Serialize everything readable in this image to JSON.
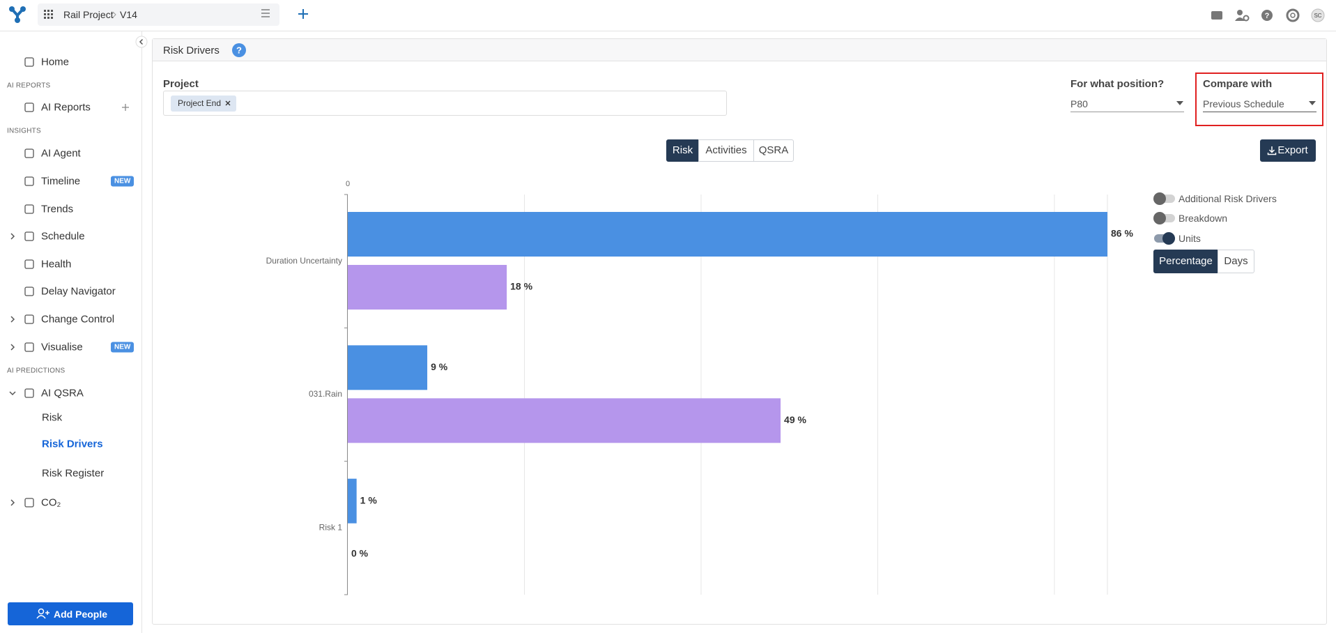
{
  "header": {
    "project": "Rail Project",
    "version": "V14",
    "avatar": "SC"
  },
  "sidebar": [
    {
      "label": "Home"
    },
    {
      "section": "AI REPORTS"
    },
    {
      "label": "AI Reports",
      "add": true
    },
    {
      "section": "INSIGHTS"
    },
    {
      "label": "AI Agent"
    },
    {
      "label": "Timeline",
      "badge": "NEW"
    },
    {
      "label": "Trends"
    },
    {
      "label": "Schedule",
      "chevron": "right"
    },
    {
      "label": "Health"
    },
    {
      "label": "Delay Navigator"
    },
    {
      "label": "Change Control",
      "chevron": "right"
    },
    {
      "label": "Visualise",
      "chevron": "right",
      "badge": "NEW"
    },
    {
      "section": "AI PREDICTIONS"
    },
    {
      "label": "AI QSRA",
      "chevron": "down"
    },
    {
      "label": "Risk",
      "sub": true
    },
    {
      "label": "Risk Drivers",
      "sub": true,
      "active": true
    },
    {
      "label": "Risk Register",
      "sub": true
    },
    {
      "label": "CO₂",
      "chevron": "right"
    }
  ],
  "add_people": "Add People",
  "panel": {
    "title": "Risk Drivers",
    "help": "?",
    "project_label": "Project",
    "project_tag": "Project End",
    "position_label": "For what position?",
    "position_value": "P80",
    "compare_label": "Compare with",
    "compare_value": "Previous Schedule",
    "tabs": [
      "Risk",
      "Activities",
      "QSRA"
    ],
    "active_tab": 0,
    "export": "Export",
    "toggles": [
      {
        "label": "Additional Risk Drivers",
        "on": false
      },
      {
        "label": "Breakdown",
        "on": false
      },
      {
        "label": "Units",
        "on": true
      }
    ],
    "units": [
      "Percentage",
      "Days"
    ],
    "active_unit": 0
  },
  "chart_data": {
    "type": "bar",
    "orientation": "horizontal",
    "categories": [
      "Duration Uncertainty",
      "031.Rain",
      "Risk 1"
    ],
    "series": [
      {
        "color": "#4a90e2",
        "values": [
          86,
          9,
          1
        ],
        "value_labels": [
          "86 %",
          "9 %",
          "1 %"
        ]
      },
      {
        "color": "#b596ec",
        "values": [
          18,
          49,
          0
        ],
        "value_labels": [
          "18 %",
          "49 %",
          "0 %"
        ]
      }
    ],
    "xlim": [
      0,
      86
    ],
    "xticks": [
      0
    ],
    "grid": true,
    "grid_x": [
      20,
      40,
      60,
      80
    ]
  }
}
